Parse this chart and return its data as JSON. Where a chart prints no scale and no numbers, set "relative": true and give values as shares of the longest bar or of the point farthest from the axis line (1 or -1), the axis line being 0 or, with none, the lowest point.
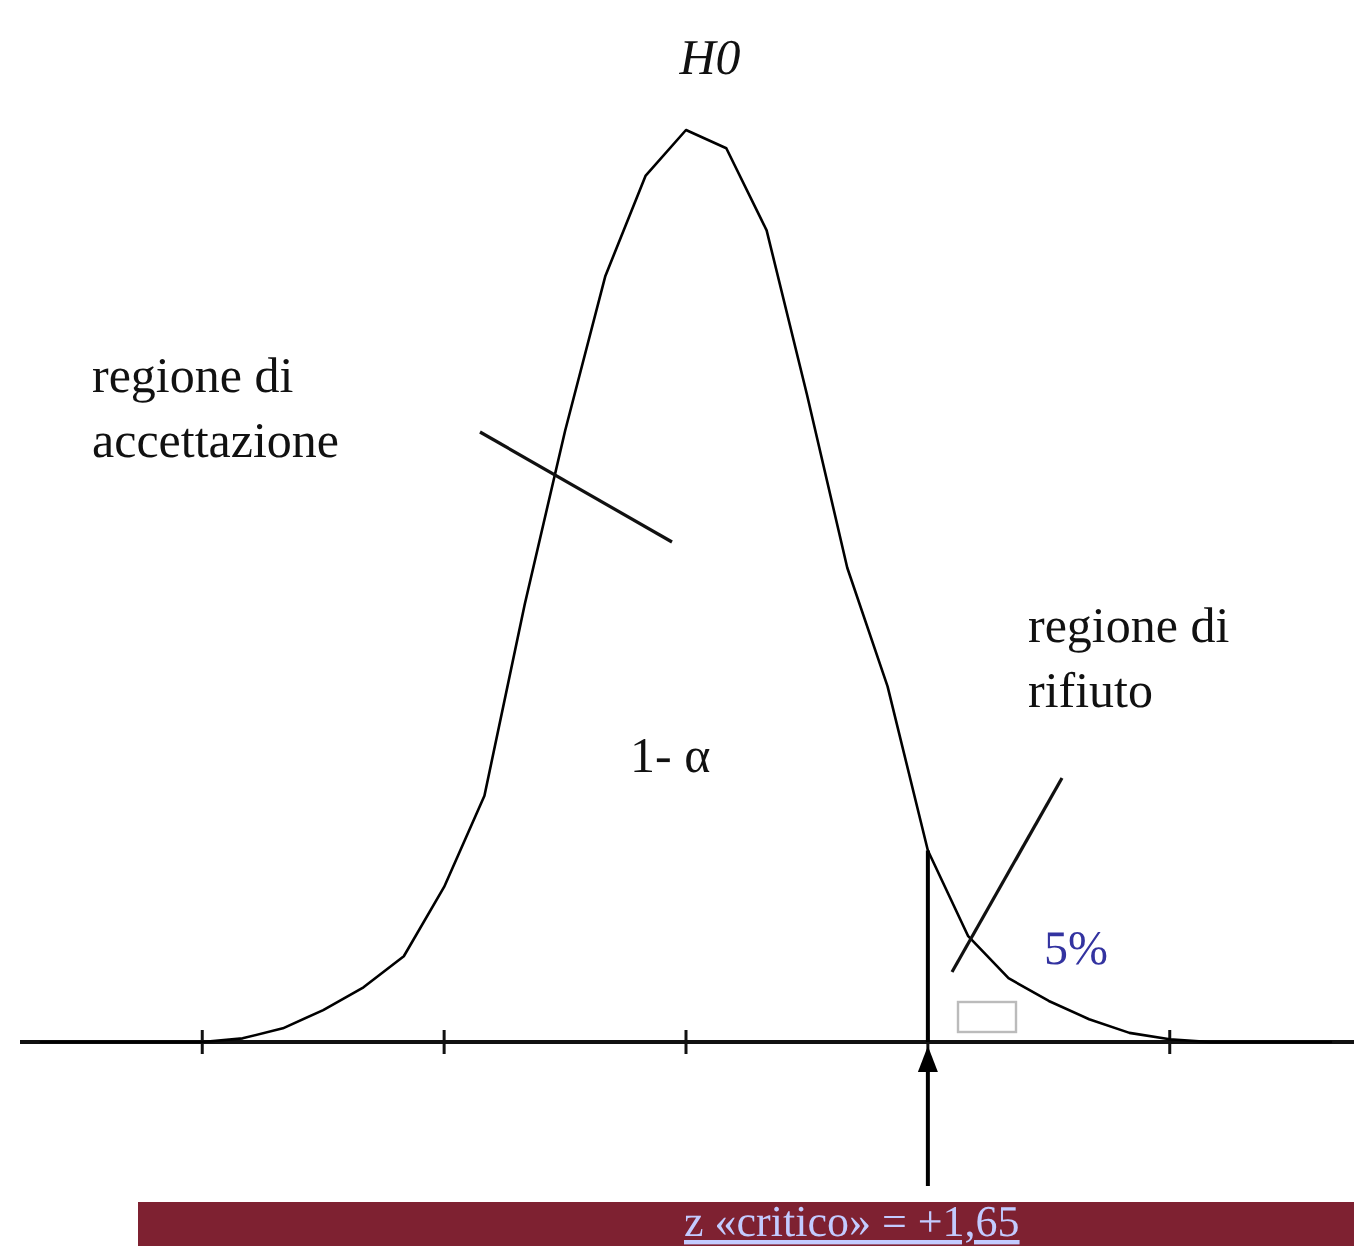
{
  "chart_data": {
    "type": "line",
    "title": "H0",
    "relative": true,
    "categories": [
      null,
      null,
      null,
      null,
      null,
      null,
      null,
      null,
      null,
      null,
      null,
      null,
      null,
      null,
      null,
      null,
      null,
      null,
      null,
      null,
      null,
      null,
      null,
      null,
      null,
      null,
      null,
      null,
      null,
      null,
      null,
      null,
      null
    ],
    "series": [
      {
        "color": "#000000",
        "values": [
          0,
          0,
          0,
          0,
          0,
          0.004,
          0.015,
          0.035,
          0.06,
          0.094,
          0.17,
          0.27,
          0.48,
          0.67,
          0.84,
          0.95,
          1,
          0.98,
          0.89,
          0.71,
          0.52,
          0.39,
          0.21,
          0.116,
          0.07,
          0.045,
          0.025,
          0.01,
          0.003,
          0,
          0,
          0,
          0
        ]
      }
    ],
    "annotations": [
      "regione di accettazione",
      "1- α",
      "regione di rifiuto",
      "5%",
      "z «critico» = +1,65"
    ]
  }
}
